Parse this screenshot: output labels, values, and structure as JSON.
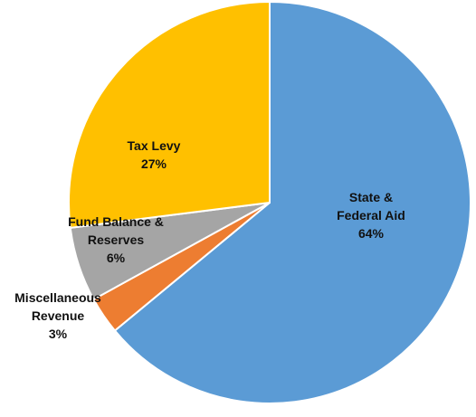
{
  "chart_data": {
    "type": "pie",
    "slices": [
      {
        "label": "State & Federal Aid",
        "label_lines": [
          "State &",
          "Federal Aid"
        ],
        "value": 64,
        "value_label": "64%",
        "color": "#5b9bd5"
      },
      {
        "label": "Miscellaneous Revenue",
        "label_lines": [
          "Miscellaneous",
          "Revenue"
        ],
        "value": 3,
        "value_label": "3%",
        "color": "#ed7d31"
      },
      {
        "label": "Fund Balance & Reserves",
        "label_lines": [
          "Fund Balance &",
          "Reserves"
        ],
        "value": 6,
        "value_label": "6%",
        "color": "#a5a5a5"
      },
      {
        "label": "Tax Levy",
        "label_lines": [
          "Tax Levy"
        ],
        "value": 27,
        "value_label": "27%",
        "color": "#ffc000"
      }
    ],
    "start": "12 o'clock",
    "direction": "clockwise",
    "legend": "none"
  }
}
